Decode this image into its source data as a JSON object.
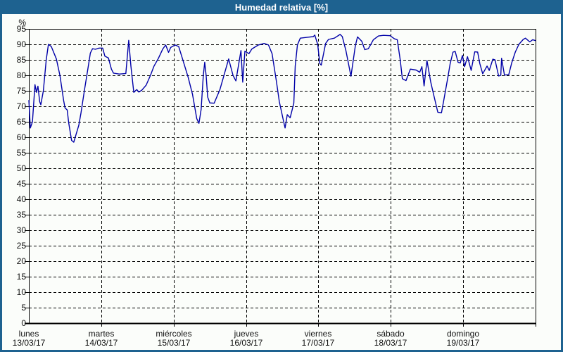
{
  "window": {
    "title": "Humedad relativa [%]",
    "titlebar_color": "#1e6290",
    "border_color": "#1e6290",
    "background_color": "#fbfdfa"
  },
  "chart_data": {
    "type": "line",
    "title": "Humedad relativa [%]",
    "ylabel": "%",
    "ylim": [
      0,
      95
    ],
    "y_ticks": [
      0,
      5,
      10,
      15,
      20,
      25,
      30,
      35,
      40,
      45,
      50,
      55,
      60,
      65,
      70,
      75,
      80,
      85,
      90,
      95
    ],
    "x_days": [
      {
        "name": "lunes",
        "date": "13/03/17"
      },
      {
        "name": "martes",
        "date": "14/03/17"
      },
      {
        "name": "miércoles",
        "date": "15/03/17"
      },
      {
        "name": "jueves",
        "date": "16/03/17"
      },
      {
        "name": "viernes",
        "date": "17/03/17"
      },
      {
        "name": "sábado",
        "date": "18/03/17"
      },
      {
        "name": "domingo",
        "date": "19/03/17"
      }
    ],
    "x_range_days": [
      0,
      7
    ],
    "grid": "dashed",
    "legend": "none",
    "line_color": "#0000a8",
    "grid_color": "#000000",
    "series": [
      {
        "name": "Humedad relativa",
        "units": "%",
        "points": [
          [
            0.0,
            72.0
          ],
          [
            0.02,
            63.0
          ],
          [
            0.05,
            65.0
          ],
          [
            0.085,
            77.0
          ],
          [
            0.105,
            74.5
          ],
          [
            0.125,
            76.5
          ],
          [
            0.15,
            71.5
          ],
          [
            0.165,
            70.5
          ],
          [
            0.2,
            75.0
          ],
          [
            0.24,
            85.0
          ],
          [
            0.27,
            90.0
          ],
          [
            0.31,
            89.3
          ],
          [
            0.38,
            85.3
          ],
          [
            0.43,
            79.9
          ],
          [
            0.48,
            71.9
          ],
          [
            0.5,
            69.5
          ],
          [
            0.53,
            68.8
          ],
          [
            0.55,
            64.7
          ],
          [
            0.59,
            59.0
          ],
          [
            0.62,
            58.4
          ],
          [
            0.69,
            63.9
          ],
          [
            0.72,
            67.9
          ],
          [
            0.77,
            75.5
          ],
          [
            0.82,
            82.7
          ],
          [
            0.85,
            87.2
          ],
          [
            0.88,
            88.6
          ],
          [
            0.92,
            88.4
          ],
          [
            0.97,
            88.8
          ],
          [
            1.02,
            88.8
          ],
          [
            1.05,
            86.2
          ],
          [
            1.1,
            85.6
          ],
          [
            1.14,
            82.0
          ],
          [
            1.17,
            80.7
          ],
          [
            1.25,
            80.4
          ],
          [
            1.34,
            80.6
          ],
          [
            1.38,
            91.3
          ],
          [
            1.41,
            83.0
          ],
          [
            1.45,
            74.5
          ],
          [
            1.49,
            75.4
          ],
          [
            1.52,
            74.6
          ],
          [
            1.56,
            75.2
          ],
          [
            1.62,
            76.8
          ],
          [
            1.68,
            80.0
          ],
          [
            1.73,
            83.0
          ],
          [
            1.79,
            85.5
          ],
          [
            1.85,
            88.5
          ],
          [
            1.89,
            89.8
          ],
          [
            1.93,
            87.4
          ],
          [
            1.96,
            89.0
          ],
          [
            2.02,
            89.8
          ],
          [
            2.07,
            89.3
          ],
          [
            2.12,
            85.5
          ],
          [
            2.2,
            79.4
          ],
          [
            2.26,
            73.9
          ],
          [
            2.32,
            66.0
          ],
          [
            2.35,
            64.5
          ],
          [
            2.38,
            69.0
          ],
          [
            2.41,
            80.0
          ],
          [
            2.43,
            84.2
          ],
          [
            2.45,
            79.7
          ],
          [
            2.47,
            73.0
          ],
          [
            2.5,
            71.1
          ],
          [
            2.56,
            71.0
          ],
          [
            2.64,
            75.4
          ],
          [
            2.76,
            85.3
          ],
          [
            2.82,
            80.0
          ],
          [
            2.86,
            78.2
          ],
          [
            2.93,
            88.0
          ],
          [
            2.955,
            77.8
          ],
          [
            2.985,
            87.8
          ],
          [
            3.04,
            87.0
          ],
          [
            3.08,
            88.5
          ],
          [
            3.17,
            89.8
          ],
          [
            3.25,
            90.3
          ],
          [
            3.31,
            89.8
          ],
          [
            3.36,
            87.0
          ],
          [
            3.42,
            78.0
          ],
          [
            3.46,
            71.5
          ],
          [
            3.52,
            65.0
          ],
          [
            3.54,
            63.0
          ],
          [
            3.57,
            67.3
          ],
          [
            3.61,
            66.3
          ],
          [
            3.66,
            71.0
          ],
          [
            3.68,
            83.0
          ],
          [
            3.71,
            89.8
          ],
          [
            3.75,
            92.0
          ],
          [
            3.85,
            92.3
          ],
          [
            3.93,
            92.5
          ],
          [
            3.95,
            93.0
          ],
          [
            3.99,
            90.0
          ],
          [
            4.02,
            83.8
          ],
          [
            4.04,
            83.3
          ],
          [
            4.1,
            90.3
          ],
          [
            4.14,
            91.6
          ],
          [
            4.22,
            92.0
          ],
          [
            4.3,
            93.2
          ],
          [
            4.33,
            92.5
          ],
          [
            4.38,
            88.0
          ],
          [
            4.45,
            79.7
          ],
          [
            4.51,
            89.5
          ],
          [
            4.54,
            92.4
          ],
          [
            4.6,
            91.0
          ],
          [
            4.64,
            88.3
          ],
          [
            4.69,
            88.6
          ],
          [
            4.76,
            91.5
          ],
          [
            4.83,
            92.7
          ],
          [
            4.9,
            92.9
          ],
          [
            4.99,
            92.8
          ],
          [
            5.05,
            91.8
          ],
          [
            5.09,
            91.5
          ],
          [
            5.13,
            85.0
          ],
          [
            5.16,
            78.9
          ],
          [
            5.21,
            78.3
          ],
          [
            5.27,
            82.0
          ],
          [
            5.35,
            81.7
          ],
          [
            5.4,
            81.0
          ],
          [
            5.43,
            82.8
          ],
          [
            5.46,
            76.6
          ],
          [
            5.5,
            84.8
          ],
          [
            5.55,
            78.0
          ],
          [
            5.58,
            75.0
          ],
          [
            5.65,
            68.1
          ],
          [
            5.7,
            67.9
          ],
          [
            5.73,
            71.7
          ],
          [
            5.79,
            79.5
          ],
          [
            5.82,
            83.7
          ],
          [
            5.86,
            87.5
          ],
          [
            5.89,
            87.7
          ],
          [
            5.93,
            84.2
          ],
          [
            5.96,
            84.0
          ],
          [
            5.99,
            86.4
          ],
          [
            6.02,
            82.8
          ],
          [
            6.06,
            86.0
          ],
          [
            6.11,
            81.6
          ],
          [
            6.16,
            87.6
          ],
          [
            6.2,
            87.5
          ],
          [
            6.23,
            83.8
          ],
          [
            6.27,
            80.5
          ],
          [
            6.33,
            83.0
          ],
          [
            6.36,
            81.6
          ],
          [
            6.41,
            85.2
          ],
          [
            6.44,
            85.0
          ],
          [
            6.49,
            79.8
          ],
          [
            6.52,
            80.0
          ],
          [
            6.53,
            85.5
          ],
          [
            6.57,
            80.1
          ],
          [
            6.63,
            80.2
          ],
          [
            6.67,
            84.0
          ],
          [
            6.72,
            87.5
          ],
          [
            6.77,
            90.0
          ],
          [
            6.83,
            91.6
          ],
          [
            6.86,
            92.0
          ],
          [
            6.92,
            90.8
          ],
          [
            6.96,
            91.5
          ],
          [
            7.0,
            91.2
          ]
        ]
      }
    ]
  }
}
